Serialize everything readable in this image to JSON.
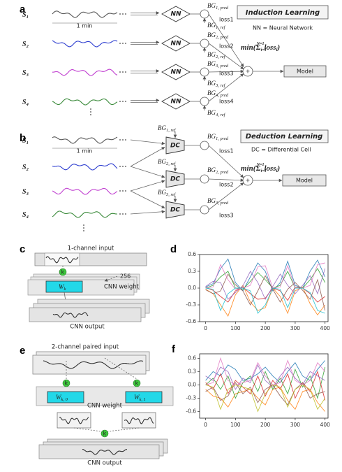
{
  "panel_a": {
    "label": "a",
    "title": "Induction Learning",
    "legend": "NN = Neural Network",
    "duration": "1 min",
    "signals": [
      {
        "main": "S",
        "sub": "1"
      },
      {
        "main": "S",
        "sub": "2"
      },
      {
        "main": "S",
        "sub": "3"
      },
      {
        "main": "S",
        "sub": "4"
      }
    ],
    "block": "NN",
    "pred": [
      {
        "main": "BG",
        "sub": "1, pred"
      },
      {
        "main": "BG",
        "sub": "2, pred"
      },
      {
        "main": "BG",
        "sub": "3, pred"
      },
      {
        "main": "BG",
        "sub": "4, pred"
      }
    ],
    "ref": [
      {
        "main": "BG",
        "sub": "1, ref"
      },
      {
        "main": "BG",
        "sub": "2, ref"
      },
      {
        "main": "BG",
        "sub": "3, ref"
      },
      {
        "main": "BG",
        "sub": "4, ref"
      }
    ],
    "losses": [
      "loss1",
      "loss2",
      "loss3",
      "loss4"
    ],
    "objective": {
      "pre": "min(",
      "sigma": "Σ",
      "lower": "i=1",
      "upper": "N=1",
      "term": "loss",
      "term_sub": "i",
      "post": ")"
    },
    "sum": "+",
    "output": "Model"
  },
  "panel_b": {
    "label": "b",
    "title": "Deduction Learning",
    "legend": "DC = Differential Cell",
    "duration": "1 min",
    "signals": [
      {
        "main": "S",
        "sub": "1"
      },
      {
        "main": "S",
        "sub": "2"
      },
      {
        "main": "S",
        "sub": "3"
      },
      {
        "main": "S",
        "sub": "4"
      }
    ],
    "block": "DC",
    "pred": [
      {
        "main": "BG",
        "sub": "1, pred"
      },
      {
        "main": "BG",
        "sub": "2, pred"
      },
      {
        "main": "BG",
        "sub": "3, pred"
      }
    ],
    "ref": [
      {
        "main": "BG",
        "sub": "1, ref"
      },
      {
        "main": "BG",
        "sub": "2, ref"
      },
      {
        "main": "BG",
        "sub": "3, ref"
      }
    ],
    "losses": [
      "loss1",
      "loss2",
      "loss3"
    ],
    "objective": {
      "pre": "min(",
      "sigma": "Σ",
      "lower": "i=1",
      "upper": "N=1",
      "term": "loss",
      "term_sub": "i",
      "post": ")"
    },
    "sum": "+",
    "output": "Model"
  },
  "panel_c": {
    "label": "c",
    "input": "1-channel input",
    "channels": "256",
    "kernel": "k",
    "weight": {
      "main": "W",
      "sub": "k"
    },
    "weight_label": "CNN weight",
    "output": "CNN output"
  },
  "panel_e": {
    "label": "e",
    "input": "2-channel paired input",
    "kernel": "k",
    "weights": [
      {
        "main": "W",
        "sub": "k, 0"
      },
      {
        "main": "W",
        "sub": "k, 1"
      }
    ],
    "weight_label": "CNN weight",
    "output": "CNN output"
  },
  "chart_data": [
    {
      "type": "line",
      "label": "d",
      "x": [
        0,
        25,
        50,
        75,
        100,
        125,
        150,
        175,
        200,
        225,
        250,
        275,
        300,
        325,
        350,
        375,
        400
      ],
      "xlim": [
        -20,
        410
      ],
      "xticks": [
        0,
        100,
        200,
        300,
        400
      ],
      "ylim": [
        -0.6,
        0.6
      ],
      "yticks": [
        -0.6,
        -0.3,
        {
          "value": 0,
          "label": "0.0"
        },
        0.3,
        0.6
      ],
      "series": [
        {
          "color": "#1f77b4",
          "values": [
            0.02,
            0.08,
            0.35,
            0.52,
            0.1,
            -0.05,
            0.2,
            0.45,
            0.3,
            -0.05,
            0.1,
            0.48,
            0.05,
            0.0,
            0.3,
            0.5,
            0.2
          ]
        },
        {
          "color": "#ff7f0e",
          "values": [
            -0.02,
            -0.1,
            -0.3,
            -0.5,
            -0.12,
            0.05,
            -0.25,
            -0.4,
            -0.35,
            0.0,
            -0.15,
            -0.45,
            -0.05,
            0.02,
            -0.28,
            -0.48,
            -0.3
          ]
        },
        {
          "color": "#2ca02c",
          "values": [
            0.0,
            0.05,
            0.2,
            0.3,
            0.0,
            -0.02,
            0.12,
            0.28,
            0.15,
            0.0,
            0.05,
            0.3,
            0.0,
            0.0,
            0.15,
            0.35,
            0.1
          ]
        },
        {
          "color": "#d62728",
          "values": [
            0.01,
            -0.04,
            -0.15,
            -0.25,
            -0.05,
            0.02,
            -0.1,
            -0.2,
            -0.18,
            0.0,
            -0.05,
            -0.22,
            0.02,
            0.0,
            -0.1,
            -0.25,
            -0.15
          ]
        },
        {
          "color": "#9467bd",
          "values": [
            0.03,
            0.12,
            0.1,
            -0.2,
            -0.08,
            0.04,
            0.3,
            0.1,
            -0.2,
            0.03,
            0.25,
            0.05,
            -0.1,
            0.05,
            0.22,
            -0.1,
            0.35
          ]
        },
        {
          "color": "#8c564b",
          "values": [
            -0.03,
            -0.1,
            -0.05,
            0.25,
            0.06,
            -0.05,
            -0.3,
            -0.05,
            0.22,
            -0.02,
            -0.25,
            -0.02,
            0.1,
            -0.04,
            -0.2,
            0.15,
            -0.4
          ]
        },
        {
          "color": "#e377c2",
          "values": [
            0.0,
            0.02,
            0.42,
            0.15,
            -0.02,
            0.0,
            0.05,
            0.38,
            0.4,
            0.0,
            0.02,
            0.4,
            0.0,
            0.0,
            0.05,
            0.42,
            0.45
          ]
        },
        {
          "color": "#17becf",
          "values": [
            0.0,
            -0.02,
            -0.4,
            -0.1,
            0.0,
            0.0,
            -0.05,
            -0.45,
            -0.3,
            0.0,
            -0.02,
            -0.35,
            0.0,
            0.0,
            -0.08,
            -0.4,
            -0.45
          ]
        }
      ]
    },
    {
      "type": "line",
      "label": "f",
      "x": [
        0,
        25,
        50,
        75,
        100,
        125,
        150,
        175,
        200,
        225,
        250,
        275,
        300,
        325,
        350,
        375,
        400
      ],
      "xlim": [
        -20,
        410
      ],
      "xticks": [
        0,
        100,
        200,
        300,
        400
      ],
      "ylim": [
        -0.75,
        0.7
      ],
      "yticks": [
        -0.6,
        -0.3,
        {
          "value": 0,
          "label": "0.0"
        },
        0.3,
        0.6
      ],
      "series": [
        {
          "color": "#1f77b4",
          "values": [
            0.1,
            0.3,
            0.2,
            0.45,
            0.35,
            0.1,
            0.15,
            0.25,
            0.4,
            0.2,
            0.05,
            0.3,
            0.5,
            0.2,
            0.1,
            0.35,
            0.55
          ]
        },
        {
          "color": "#ff7f0e",
          "values": [
            -0.1,
            -0.25,
            -0.3,
            -0.5,
            -0.2,
            -0.15,
            -0.1,
            -0.3,
            -0.45,
            -0.1,
            -0.05,
            -0.35,
            -0.55,
            -0.15,
            -0.1,
            -0.4,
            -0.6
          ]
        },
        {
          "color": "#2ca02c",
          "values": [
            0.0,
            0.15,
            -0.1,
            0.2,
            -0.3,
            0.05,
            0.2,
            -0.15,
            0.3,
            -0.1,
            0.15,
            -0.2,
            0.35,
            -0.05,
            0.2,
            -0.3,
            0.4
          ]
        },
        {
          "color": "#d62728",
          "values": [
            0.05,
            -0.1,
            0.25,
            -0.2,
            0.1,
            -0.05,
            -0.2,
            0.2,
            -0.25,
            0.1,
            -0.1,
            0.25,
            -0.3,
            0.05,
            -0.15,
            0.3,
            -0.35
          ]
        },
        {
          "color": "#9467bd",
          "values": [
            0.2,
            0.1,
            0.4,
            0.3,
            -0.1,
            0.15,
            0.05,
            0.45,
            0.1,
            -0.05,
            0.2,
            0.4,
            0.15,
            0.0,
            0.3,
            0.2,
            0.1
          ]
        },
        {
          "color": "#8c564b",
          "values": [
            -0.15,
            -0.05,
            -0.35,
            -0.25,
            0.05,
            -0.2,
            -0.05,
            -0.4,
            -0.1,
            0.0,
            -0.25,
            -0.45,
            -0.1,
            0.05,
            -0.3,
            -0.2,
            -0.15
          ]
        },
        {
          "color": "#e377c2",
          "values": [
            0.0,
            0.05,
            0.6,
            0.1,
            0.0,
            0.05,
            0.1,
            0.5,
            0.2,
            0.0,
            0.05,
            0.55,
            0.1,
            0.0,
            0.1,
            0.5,
            0.3
          ]
        },
        {
          "color": "#bcbd22",
          "values": [
            0.0,
            -0.05,
            -0.55,
            -0.1,
            0.0,
            -0.05,
            -0.1,
            -0.6,
            -0.2,
            0.0,
            -0.05,
            -0.5,
            -0.1,
            0.0,
            -0.1,
            -0.55,
            -0.3
          ]
        }
      ]
    }
  ]
}
